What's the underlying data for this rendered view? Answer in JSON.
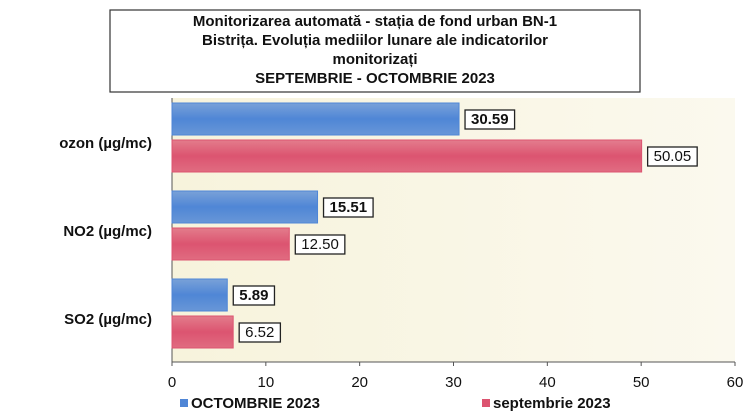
{
  "chart_data": {
    "type": "barh",
    "title": [
      "Monitorizarea automată  - stația de fond urban BN-1",
      "Bistrița. Evoluția mediilor lunare ale indicatorilor",
      "monitorizați",
      "SEPTEMBRIE - OCTOMBRIE 2023"
    ],
    "categories": [
      "ozon (µg/mc)",
      "NO2 (µg/mc)",
      "SO2 (µg/mc)"
    ],
    "series": [
      {
        "name": "OCTOMBRIE 2023",
        "color": "#4f86d6",
        "values": [
          30.59,
          15.51,
          5.89
        ]
      },
      {
        "name": "septembrie 2023",
        "color": "#dc5470",
        "values": [
          50.05,
          12.5,
          6.52
        ],
        "value_labels": [
          "50.05",
          "12.50",
          "6.52"
        ]
      }
    ],
    "xlim": [
      0,
      60
    ],
    "xticks": [
      0,
      10,
      20,
      30,
      40,
      50,
      60
    ],
    "grid": false,
    "legend": "bottom"
  }
}
